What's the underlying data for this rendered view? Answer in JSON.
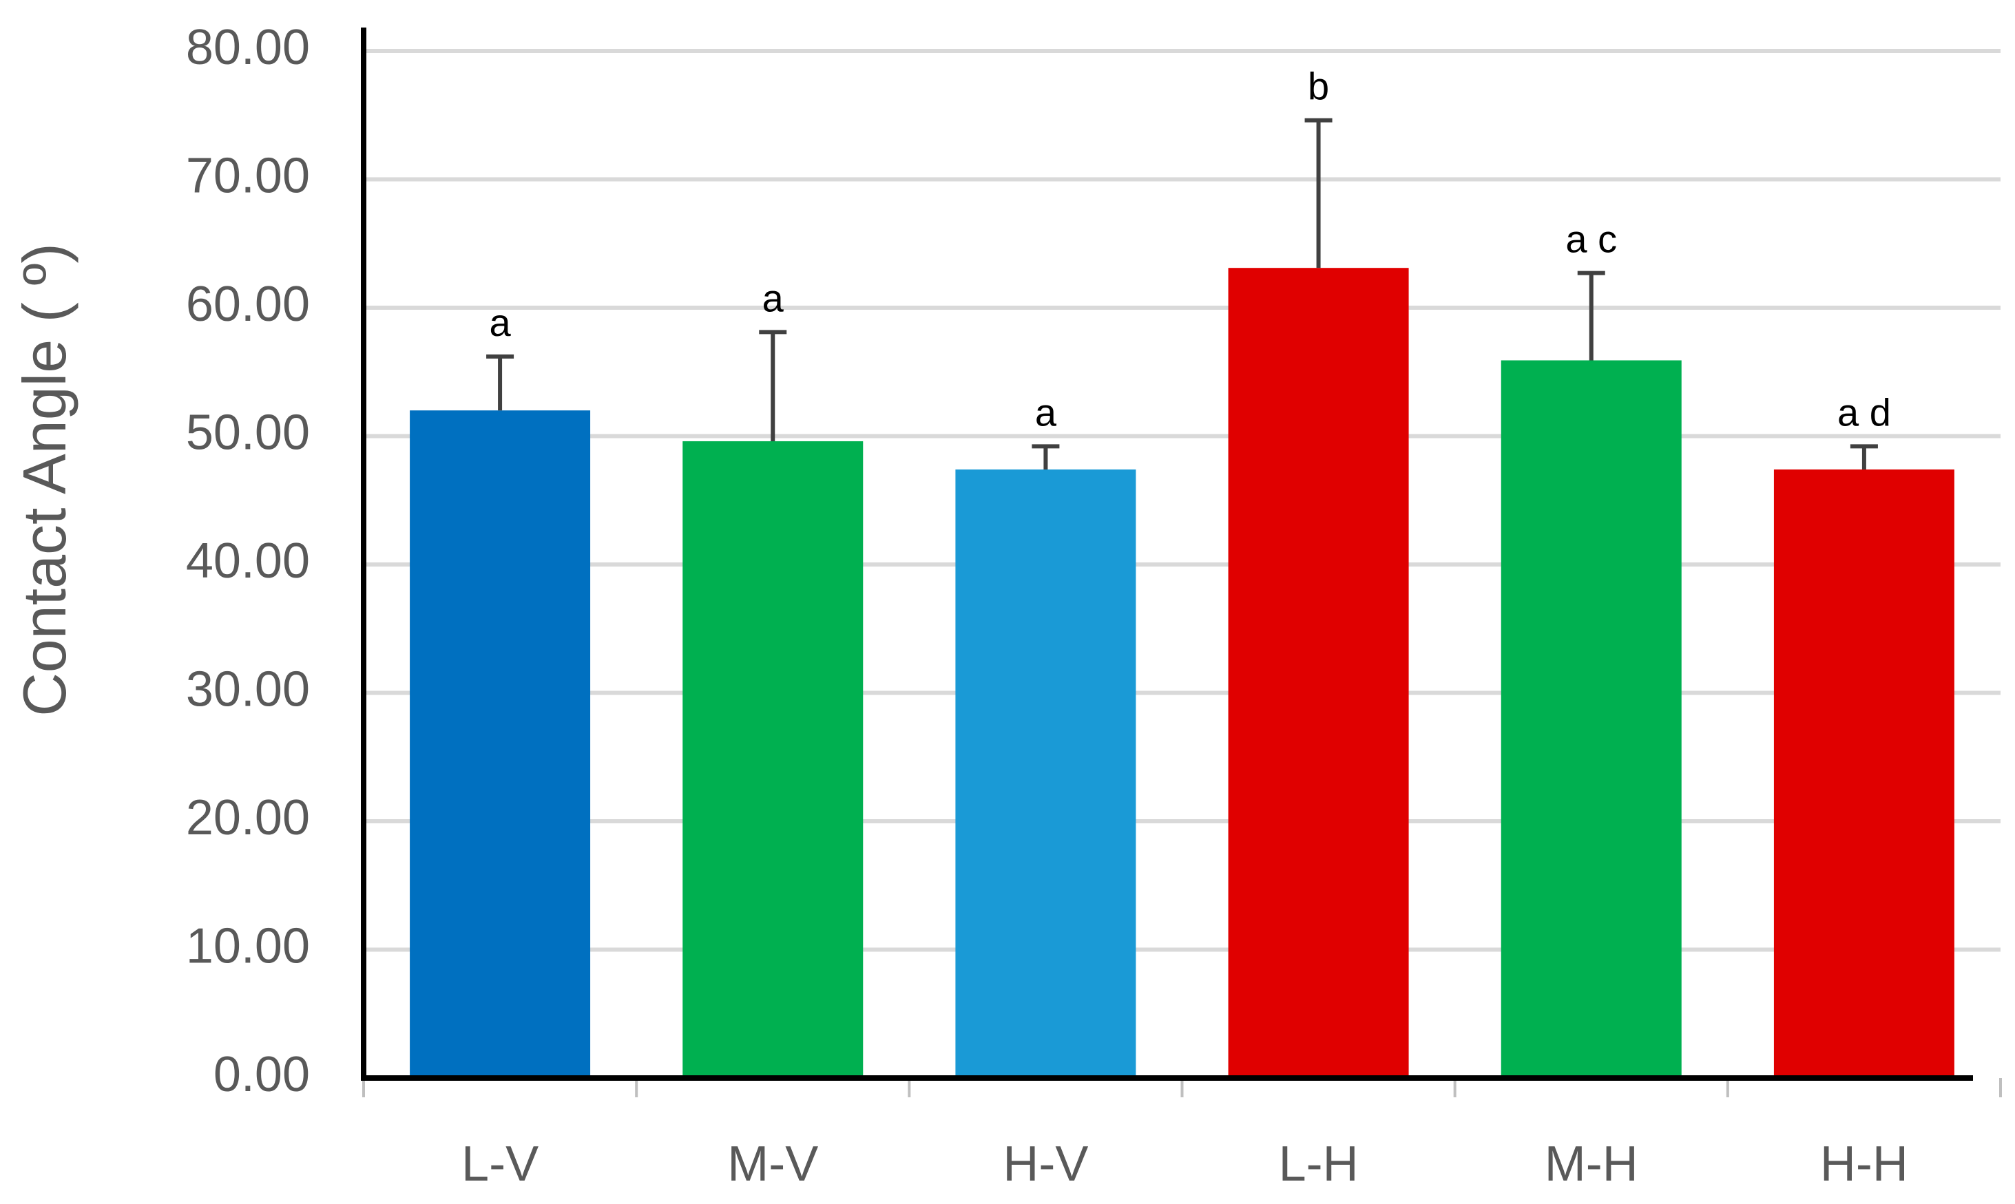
{
  "chart_data": {
    "type": "bar",
    "title": "",
    "xlabel": "",
    "ylabel": "Contact Angle ( º)",
    "ylim": [
      0,
      80
    ],
    "yticks": [
      "0.00",
      "10.00",
      "20.00",
      "30.00",
      "40.00",
      "50.00",
      "60.00",
      "70.00",
      "80.00"
    ],
    "grid": true,
    "categories": [
      "L-V",
      "M-V",
      "H-V",
      "L-H",
      "M-H",
      "H-H"
    ],
    "values": [
      52.0,
      49.6,
      47.4,
      63.1,
      55.9,
      47.4
    ],
    "errors": [
      4.2,
      8.5,
      1.8,
      11.5,
      6.8,
      1.8
    ],
    "colors": [
      "#0070c0",
      "#00b050",
      "#1a9ad6",
      "#e00000",
      "#00b050",
      "#e00000"
    ],
    "significance_labels": [
      "a",
      "a",
      "a",
      "b",
      "a c",
      "a d"
    ]
  }
}
